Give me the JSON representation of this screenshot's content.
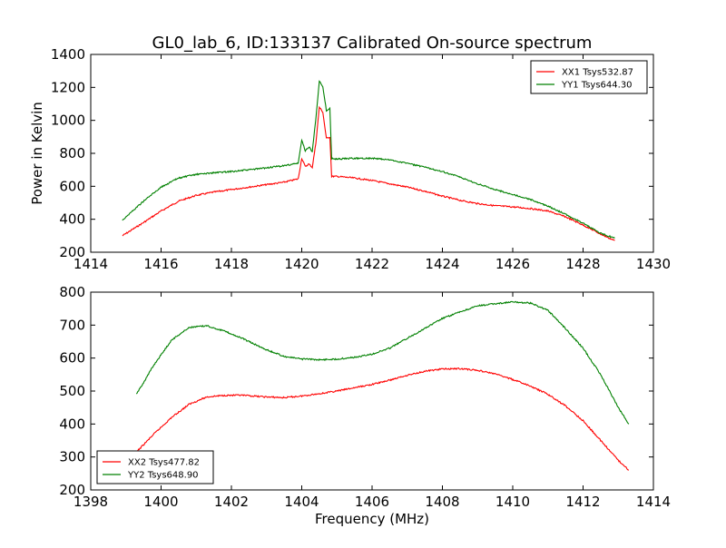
{
  "title": "GL0_lab_6, ID:133137 Calibrated On-source spectrum",
  "chart_data": [
    {
      "type": "line",
      "title": "GL0_lab_6, ID:133137 Calibrated On-source spectrum",
      "xlabel": "",
      "ylabel": "Power in Kelvin",
      "xlim": [
        1414,
        1430
      ],
      "ylim": [
        200,
        1400
      ],
      "xticks": [
        1414,
        1416,
        1418,
        1420,
        1422,
        1424,
        1426,
        1428,
        1430
      ],
      "yticks": [
        200,
        400,
        600,
        800,
        1000,
        1200,
        1400
      ],
      "legend_position": "top-right",
      "grid": false,
      "series": [
        {
          "name": "XX1 Tsys532.87",
          "color": "#ff0000",
          "x": [
            1414.9,
            1415.5,
            1416,
            1416.5,
            1417,
            1417.5,
            1418,
            1418.5,
            1419,
            1419.5,
            1419.9,
            1420.0,
            1420.1,
            1420.2,
            1420.3,
            1420.4,
            1420.5,
            1420.6,
            1420.7,
            1420.8,
            1420.85,
            1421,
            1421.5,
            1422,
            1422.5,
            1423,
            1423.5,
            1424,
            1424.5,
            1425,
            1425.5,
            1426,
            1426.5,
            1427,
            1427.5,
            1428,
            1428.5,
            1428.9
          ],
          "y": [
            300,
            380,
            450,
            510,
            545,
            565,
            580,
            595,
            610,
            625,
            645,
            770,
            720,
            735,
            715,
            860,
            1080,
            1050,
            890,
            900,
            660,
            660,
            650,
            635,
            615,
            595,
            570,
            540,
            515,
            495,
            482,
            475,
            465,
            450,
            415,
            365,
            310,
            270
          ]
        },
        {
          "name": "YY1 Tsys644.30",
          "color": "#008000",
          "x": [
            1414.9,
            1415.5,
            1416,
            1416.5,
            1417,
            1417.5,
            1418,
            1418.5,
            1419,
            1419.5,
            1419.9,
            1420.0,
            1420.1,
            1420.2,
            1420.3,
            1420.4,
            1420.5,
            1420.6,
            1420.7,
            1420.8,
            1420.85,
            1421,
            1421.5,
            1422,
            1422.5,
            1423,
            1423.5,
            1424,
            1424.5,
            1425,
            1425.5,
            1426,
            1426.5,
            1427,
            1427.5,
            1428,
            1428.5,
            1428.9
          ],
          "y": [
            395,
            510,
            595,
            650,
            672,
            682,
            690,
            700,
            712,
            725,
            740,
            880,
            815,
            840,
            810,
            1010,
            1240,
            1200,
            1060,
            1070,
            770,
            765,
            770,
            770,
            760,
            740,
            715,
            690,
            655,
            615,
            580,
            550,
            520,
            480,
            430,
            375,
            315,
            285
          ]
        }
      ]
    },
    {
      "type": "line",
      "title": "",
      "xlabel": "Frequency (MHz)",
      "ylabel": "",
      "xlim": [
        1398,
        1414
      ],
      "ylim": [
        200,
        800
      ],
      "xticks": [
        1398,
        1400,
        1402,
        1404,
        1406,
        1408,
        1410,
        1412,
        1414
      ],
      "yticks": [
        200,
        300,
        400,
        500,
        600,
        700,
        800
      ],
      "legend_position": "bottom-left",
      "grid": false,
      "series": [
        {
          "name": "XX2 Tsys477.82",
          "color": "#ff0000",
          "x": [
            1399.3,
            1399.8,
            1400.3,
            1400.8,
            1401.3,
            1401.8,
            1402.3,
            1403,
            1403.5,
            1404,
            1404.5,
            1405,
            1405.5,
            1406,
            1406.5,
            1407,
            1407.5,
            1408,
            1408.5,
            1409,
            1409.5,
            1410,
            1410.5,
            1411,
            1411.5,
            1412,
            1412.5,
            1413,
            1413.3
          ],
          "y": [
            315,
            370,
            420,
            460,
            482,
            487,
            487,
            482,
            480,
            485,
            492,
            500,
            510,
            520,
            533,
            548,
            560,
            567,
            568,
            563,
            552,
            535,
            515,
            490,
            455,
            410,
            350,
            290,
            260
          ]
        },
        {
          "name": "YY2 Tsys648.90",
          "color": "#008000",
          "x": [
            1399.3,
            1399.8,
            1400.3,
            1400.8,
            1401.3,
            1401.8,
            1402.3,
            1403,
            1403.5,
            1404,
            1404.5,
            1405,
            1405.5,
            1406,
            1406.5,
            1407,
            1407.5,
            1408,
            1408.5,
            1409,
            1409.5,
            1410,
            1410.5,
            1411,
            1411.5,
            1412,
            1412.5,
            1413,
            1413.3
          ],
          "y": [
            490,
            580,
            655,
            693,
            698,
            682,
            660,
            625,
            605,
            597,
            595,
            597,
            602,
            612,
            630,
            660,
            690,
            720,
            740,
            758,
            765,
            770,
            767,
            745,
            690,
            630,
            550,
            450,
            400
          ]
        }
      ]
    }
  ]
}
